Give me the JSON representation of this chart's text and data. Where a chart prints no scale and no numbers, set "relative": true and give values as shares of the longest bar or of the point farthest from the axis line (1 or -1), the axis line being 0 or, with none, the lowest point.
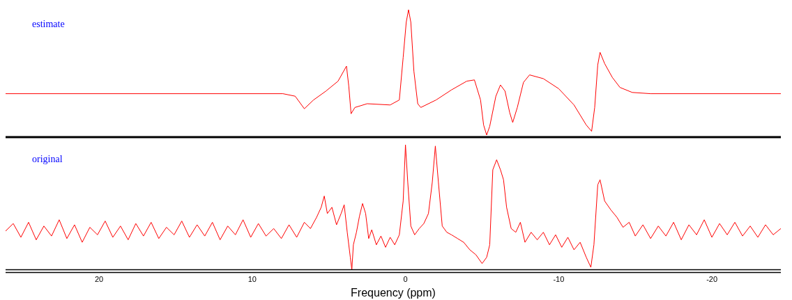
{
  "chart_data": [
    {
      "type": "line",
      "relative": true,
      "annotations": [
        "estimate"
      ],
      "xlim": [
        26.1,
        -24.5
      ],
      "tick_labels": false,
      "grid": false,
      "legend": false,
      "marker": "none",
      "series": [
        {
          "color": "#ff0000",
          "x": [
            26.1,
            8,
            7.2,
            6.6,
            6.0,
            5.2,
            4.4,
            3.85,
            3.7,
            3.55,
            3.3,
            2.5,
            1.0,
            0.4,
            0.15,
            -0.05,
            -0.2,
            -0.35,
            -0.55,
            -0.8,
            -1.0,
            -2.0,
            -3.0,
            -4.0,
            -4.5,
            -4.9,
            -5.1,
            -5.3,
            -5.5,
            -5.9,
            -6.2,
            -6.5,
            -6.8,
            -7.0,
            -7.3,
            -7.7,
            -8.1,
            -9.0,
            -10.0,
            -11.0,
            -11.8,
            -12.15,
            -12.35,
            -12.55,
            -12.7,
            -13.0,
            -13.5,
            -14.0,
            -14.8,
            -16,
            -24.5
          ],
          "values": [
            0.33,
            0.33,
            0.31,
            0.21,
            0.28,
            0.35,
            0.43,
            0.55,
            0.39,
            0.17,
            0.22,
            0.25,
            0.24,
            0.28,
            0.62,
            0.9,
            1,
            0.9,
            0.51,
            0.25,
            0.22,
            0.28,
            0.36,
            0.43,
            0.44,
            0.28,
            0.08,
            0,
            0.07,
            0.31,
            0.4,
            0.35,
            0.18,
            0.1,
            0.22,
            0.42,
            0.48,
            0.45,
            0.37,
            0.24,
            0.08,
            0.03,
            0.22,
            0.56,
            0.66,
            0.57,
            0.46,
            0.38,
            0.34,
            0.33,
            0.33
          ]
        }
      ]
    },
    {
      "type": "line",
      "relative": true,
      "annotations": [
        "original"
      ],
      "xlabel": "Frequency (ppm)",
      "xlim": [
        26.1,
        -24.5
      ],
      "xticks": [
        20,
        10,
        0,
        -10,
        -20
      ],
      "grid": false,
      "legend": false,
      "marker": "none",
      "series": [
        {
          "color": "#ff0000",
          "x": [
            26.1,
            25.6,
            25.1,
            24.6,
            24.1,
            23.6,
            23.1,
            22.6,
            22.1,
            21.6,
            21.1,
            20.6,
            20.1,
            19.6,
            19.1,
            18.6,
            18.1,
            17.6,
            17.1,
            16.6,
            16.1,
            15.6,
            15.1,
            14.6,
            14.1,
            13.6,
            13.1,
            12.6,
            12.1,
            11.6,
            11.1,
            10.6,
            10.1,
            9.6,
            9.1,
            8.6,
            8.1,
            7.6,
            7.1,
            6.6,
            6.2,
            5.8,
            5.5,
            5.3,
            5.1,
            4.8,
            4.5,
            4.2,
            4.0,
            3.8,
            3.6,
            3.5,
            3.4,
            3.2,
            3.0,
            2.8,
            2.6,
            2.4,
            2.2,
            1.9,
            1.6,
            1.3,
            1.0,
            0.7,
            0.4,
            0.15,
            0,
            -0.15,
            -0.35,
            -0.6,
            -0.9,
            -1.2,
            -1.5,
            -1.75,
            -1.95,
            -2.15,
            -2.4,
            -2.7,
            -3.0,
            -3.4,
            -3.8,
            -4.2,
            -4.6,
            -5.0,
            -5.3,
            -5.5,
            -5.7,
            -5.95,
            -6.2,
            -6.4,
            -6.6,
            -6.9,
            -7.2,
            -7.5,
            -7.8,
            -8.2,
            -8.6,
            -9.0,
            -9.4,
            -9.8,
            -10.2,
            -10.6,
            -11.0,
            -11.4,
            -11.8,
            -12.1,
            -12.3,
            -12.55,
            -12.7,
            -13.0,
            -13.4,
            -13.8,
            -14.2,
            -14.6,
            -15.0,
            -15.5,
            -16.0,
            -16.5,
            -17.0,
            -17.5,
            -18.0,
            -18.5,
            -19.0,
            -19.5,
            -20.0,
            -20.5,
            -21.0,
            -21.5,
            -22.0,
            -22.5,
            -23.0,
            -23.5,
            -24.0,
            -24.5
          ],
          "values": [
            0.31,
            0.37,
            0.26,
            0.38,
            0.24,
            0.35,
            0.27,
            0.4,
            0.25,
            0.36,
            0.22,
            0.34,
            0.28,
            0.39,
            0.26,
            0.35,
            0.24,
            0.37,
            0.27,
            0.38,
            0.25,
            0.34,
            0.28,
            0.39,
            0.26,
            0.36,
            0.27,
            0.38,
            0.24,
            0.35,
            0.28,
            0.4,
            0.26,
            0.37,
            0.27,
            0.33,
            0.25,
            0.36,
            0.26,
            0.38,
            0.33,
            0.42,
            0.5,
            0.59,
            0.45,
            0.5,
            0.36,
            0.45,
            0.52,
            0.3,
            0.1,
            0,
            0.2,
            0.3,
            0.43,
            0.53,
            0.45,
            0.25,
            0.32,
            0.2,
            0.27,
            0.18,
            0.26,
            0.2,
            0.28,
            0.55,
            1,
            0.7,
            0.35,
            0.28,
            0.33,
            0.37,
            0.45,
            0.7,
            0.99,
            0.7,
            0.35,
            0.3,
            0.28,
            0.25,
            0.22,
            0.16,
            0.12,
            0.05,
            0.1,
            0.2,
            0.8,
            0.88,
            0.8,
            0.72,
            0.5,
            0.33,
            0.3,
            0.38,
            0.22,
            0.3,
            0.24,
            0.3,
            0.2,
            0.28,
            0.18,
            0.26,
            0.16,
            0.22,
            0.1,
            0.02,
            0.2,
            0.68,
            0.72,
            0.55,
            0.48,
            0.42,
            0.34,
            0.38,
            0.27,
            0.36,
            0.25,
            0.35,
            0.27,
            0.38,
            0.24,
            0.36,
            0.28,
            0.4,
            0.26,
            0.37,
            0.28,
            0.38,
            0.27,
            0.35,
            0.26,
            0.36,
            0.28,
            0.33
          ]
        }
      ]
    }
  ]
}
